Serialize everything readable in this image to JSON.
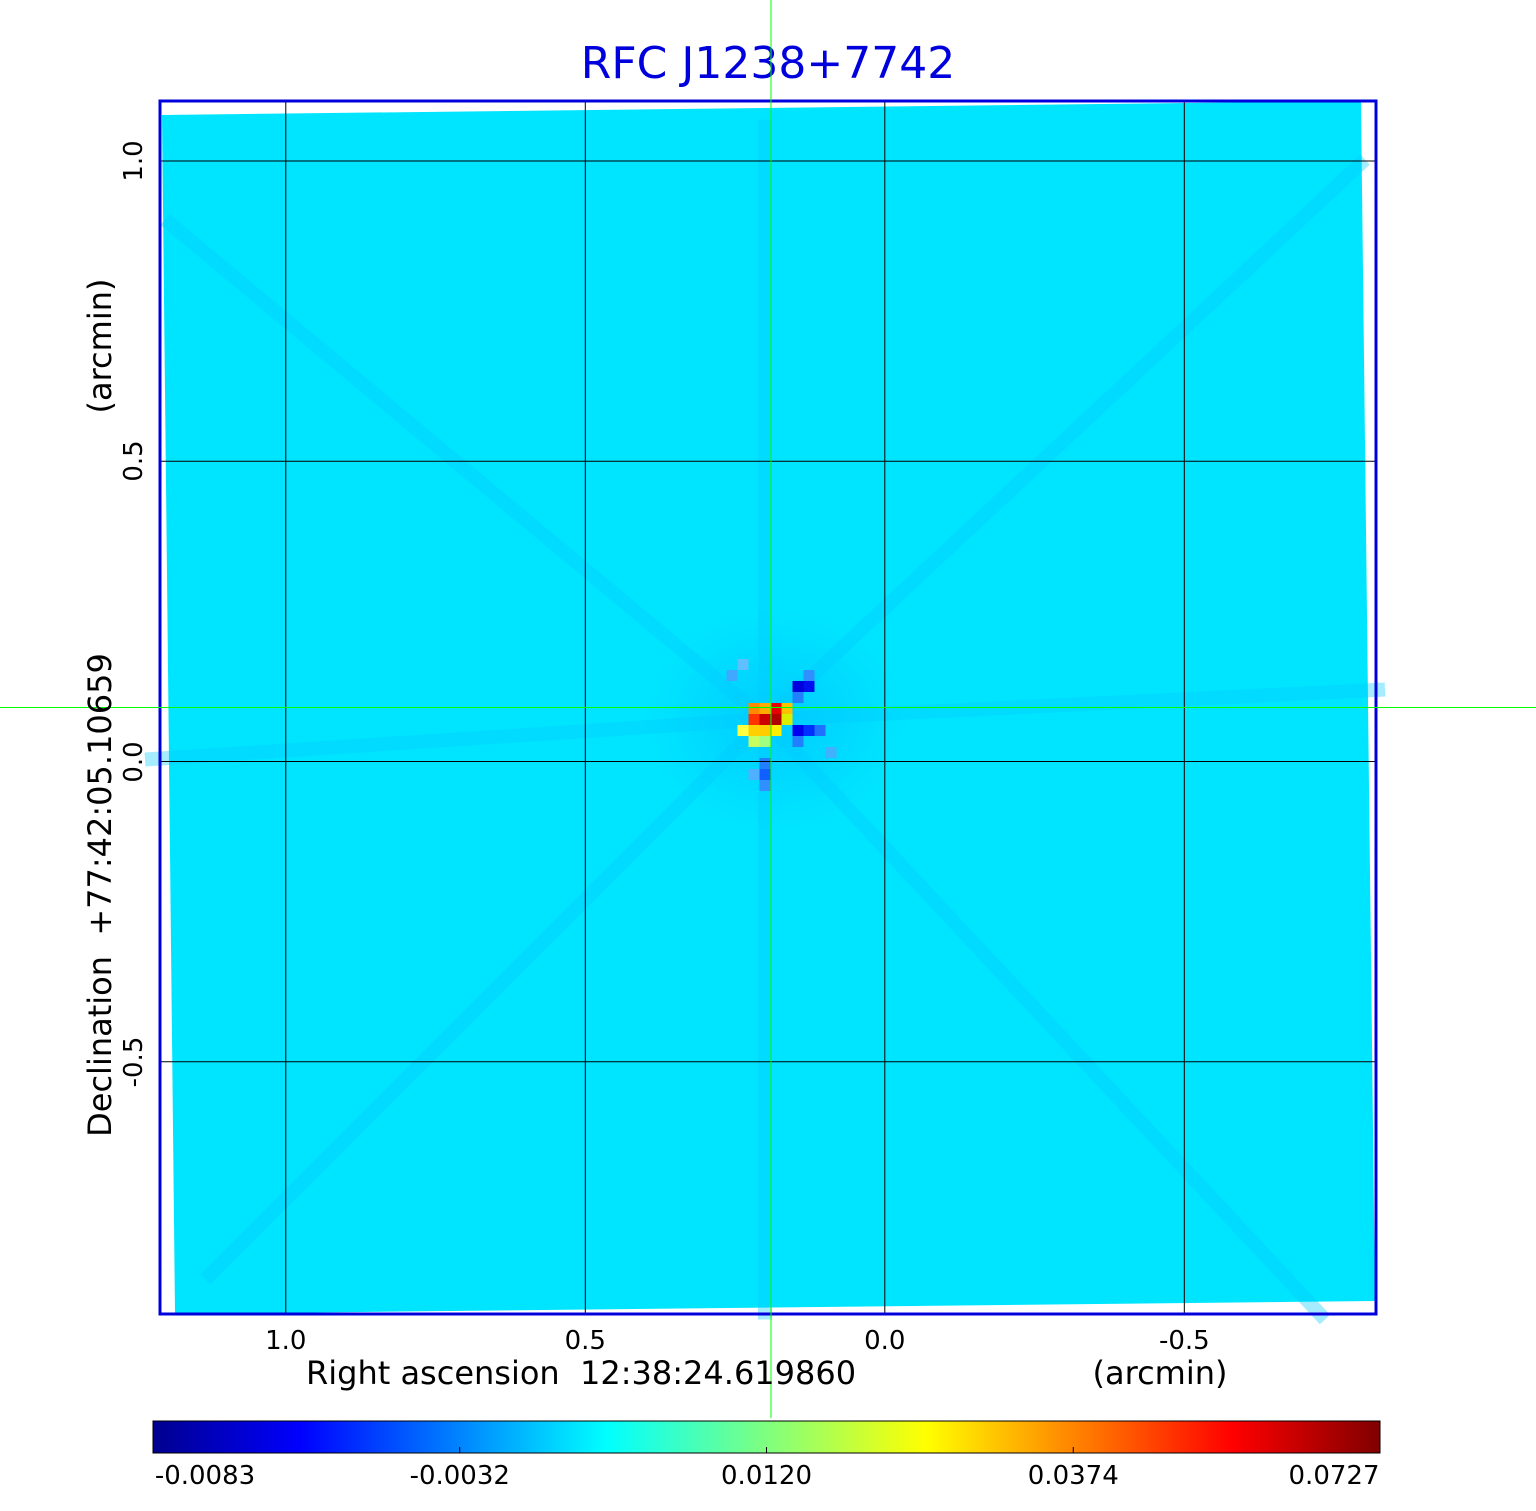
{
  "chart_data": {
    "type": "heatmap",
    "title": "RFC J1238+7742",
    "xlabel": "Right ascension  12:38:24.619860",
    "xunit": "(arcmin)",
    "ylabel": "Declination  +77:42:05.10659",
    "yunit": "(arcmin)",
    "x_ticks": [
      "1.0",
      "0.5",
      "0.0",
      "-0.5"
    ],
    "x_tick_values": [
      1.0,
      0.5,
      0.0,
      -0.5
    ],
    "y_ticks": [
      "1.0",
      "0.5",
      "0.0",
      "-0.5"
    ],
    "y_tick_values": [
      1.0,
      0.5,
      0.0,
      -0.5
    ],
    "xlim": [
      1.21,
      -0.82
    ],
    "ylim": [
      -0.92,
      1.1
    ],
    "grid": true,
    "crosshair": {
      "x": 0.19,
      "y": 0.09
    },
    "source_peak": {
      "x": 0.2,
      "y": 0.07,
      "value": 0.0727
    },
    "colorbar": {
      "ticks": [
        "-0.0083",
        "-0.0032",
        "0.0120",
        "0.0374",
        "0.0727"
      ],
      "min": -0.0083,
      "max": 0.0727,
      "colormap": "jet"
    },
    "colors": {
      "frame": "#0000dd",
      "background_map": "#00e5ff",
      "crosshair": "#00ff00",
      "grid": "#000000"
    }
  }
}
